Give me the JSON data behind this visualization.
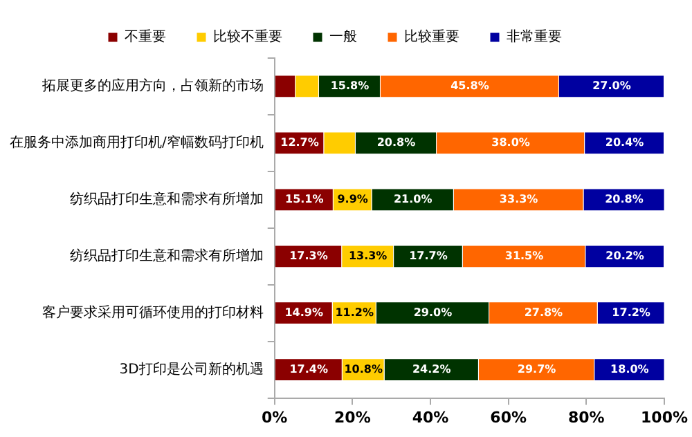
{
  "chart_data": {
    "type": "bar",
    "orientation": "horizontal",
    "stacked": true,
    "legend": "top",
    "grid": false,
    "categories": [
      "拓展更多的应用方向，占领新的市场",
      "在服务中添加商用打印机/窄幅数码打印机",
      "纺织品打印生意和需求有所增加",
      "纺织品打印生意和需求有所增加",
      "客户要求采用可循环使用的打印材料",
      "3D打印是公司新的机遇"
    ],
    "xlim": [
      0,
      100
    ],
    "xticks": [
      {
        "value": 0,
        "label": "0%"
      },
      {
        "value": 20,
        "label": "20%"
      },
      {
        "value": 40,
        "label": "40%"
      },
      {
        "value": 60,
        "label": "60%"
      },
      {
        "value": 80,
        "label": "80%"
      },
      {
        "value": 100,
        "label": "100%"
      }
    ],
    "series": [
      {
        "name": "不重要",
        "color": "#8b0000",
        "values": [
          5.4,
          12.7,
          15.1,
          17.3,
          14.9,
          17.4
        ],
        "value_labels": [
          null,
          "12.7%",
          "15.1%",
          "17.3%",
          "14.9%",
          "17.4%"
        ]
      },
      {
        "name": "比较不重要",
        "color": "#ffcc00",
        "values": [
          6,
          8.1,
          9.9,
          13.3,
          11.2,
          10.8
        ],
        "value_labels": [
          null,
          null,
          "9.9%",
          "13.3%",
          "11.2%",
          "10.8%"
        ]
      },
      {
        "name": "一般",
        "color": "#003300",
        "values": [
          15.8,
          20.8,
          21.0,
          17.7,
          29.0,
          24.2
        ],
        "value_labels": [
          "15.8%",
          "20.8%",
          "21.0%",
          "17.7%",
          "29.0%",
          "24.2%"
        ]
      },
      {
        "name": "比较重要",
        "color": "#ff6600",
        "values": [
          45.8,
          38.0,
          33.3,
          31.5,
          27.8,
          29.7
        ],
        "value_labels": [
          "45.8%",
          "38.0%",
          "33.3%",
          "31.5%",
          "27.8%",
          "29.7%"
        ]
      },
      {
        "name": "非常重要",
        "color": "#0000a0",
        "values": [
          27.0,
          20.4,
          20.8,
          20.2,
          17.2,
          18.0
        ],
        "value_labels": [
          "27.0%",
          "20.4%",
          "20.8%",
          "20.2%",
          "17.2%",
          "18.0%"
        ]
      }
    ]
  }
}
